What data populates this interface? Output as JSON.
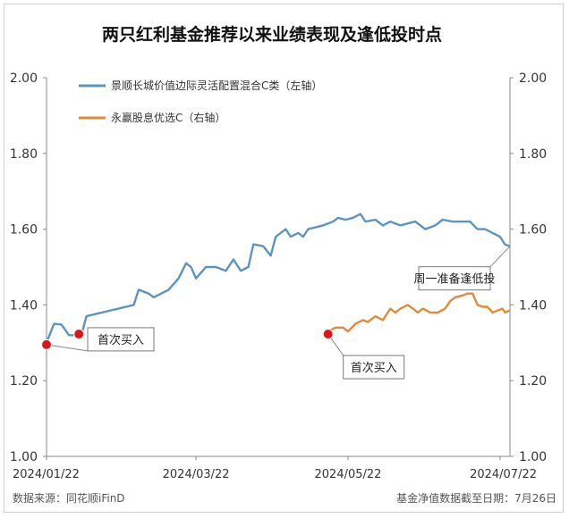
{
  "chart_data": {
    "type": "line",
    "title": "两只红利基金推荐以来业绩表现及逢低投时点",
    "x_ticks": [
      "2024/01/22",
      "2024/03/22",
      "2024/05/22",
      "2024/07/22"
    ],
    "x_tick_dates": [
      "2024-01-22",
      "2024-03-22",
      "2024-05-22",
      "2024-07-22"
    ],
    "x_range": [
      "2024-01-22",
      "2024-07-26"
    ],
    "y_left": {
      "ticks": [
        "1.00",
        "1.20",
        "1.40",
        "1.60",
        "1.80",
        "2.00"
      ],
      "range": [
        1.0,
        2.0
      ]
    },
    "y_right": {
      "ticks": [
        "1.00",
        "1.20",
        "1.40",
        "1.60",
        "1.80",
        "2.00"
      ],
      "range": [
        1.0,
        2.0
      ]
    },
    "grid": false,
    "legend_position": "top-left",
    "series": [
      {
        "name": "景顺长城价值边际灵活配置混合C类（左轴）",
        "axis": "left",
        "color": "#5b94c4",
        "points": [
          [
            "2024-01-22",
            1.3
          ],
          [
            "2024-01-25",
            1.35
          ],
          [
            "2024-01-28",
            1.348
          ],
          [
            "2024-01-31",
            1.32
          ],
          [
            "2024-02-05",
            1.32
          ],
          [
            "2024-02-07",
            1.37
          ],
          [
            "2024-02-26",
            1.4
          ],
          [
            "2024-02-28",
            1.44
          ],
          [
            "2024-03-03",
            1.43
          ],
          [
            "2024-03-05",
            1.42
          ],
          [
            "2024-03-08",
            1.43
          ],
          [
            "2024-03-11",
            1.44
          ],
          [
            "2024-03-15",
            1.47
          ],
          [
            "2024-03-18",
            1.51
          ],
          [
            "2024-03-20",
            1.5
          ],
          [
            "2024-03-22",
            1.47
          ],
          [
            "2024-03-26",
            1.5
          ],
          [
            "2024-03-30",
            1.5
          ],
          [
            "2024-04-03",
            1.49
          ],
          [
            "2024-04-06",
            1.52
          ],
          [
            "2024-04-09",
            1.49
          ],
          [
            "2024-04-12",
            1.5
          ],
          [
            "2024-04-14",
            1.56
          ],
          [
            "2024-04-18",
            1.555
          ],
          [
            "2024-04-21",
            1.53
          ],
          [
            "2024-04-23",
            1.58
          ],
          [
            "2024-04-27",
            1.6
          ],
          [
            "2024-04-29",
            1.58
          ],
          [
            "2024-05-02",
            1.59
          ],
          [
            "2024-05-04",
            1.58
          ],
          [
            "2024-05-06",
            1.6
          ],
          [
            "2024-05-12",
            1.61
          ],
          [
            "2024-05-16",
            1.62
          ],
          [
            "2024-05-18",
            1.63
          ],
          [
            "2024-05-21",
            1.625
          ],
          [
            "2024-05-24",
            1.63
          ],
          [
            "2024-05-27",
            1.64
          ],
          [
            "2024-05-29",
            1.62
          ],
          [
            "2024-06-02",
            1.625
          ],
          [
            "2024-06-05",
            1.61
          ],
          [
            "2024-06-08",
            1.62
          ],
          [
            "2024-06-12",
            1.61
          ],
          [
            "2024-06-15",
            1.615
          ],
          [
            "2024-06-18",
            1.62
          ],
          [
            "2024-06-22",
            1.6
          ],
          [
            "2024-06-26",
            1.61
          ],
          [
            "2024-06-29",
            1.625
          ],
          [
            "2024-07-03",
            1.62
          ],
          [
            "2024-07-06",
            1.62
          ],
          [
            "2024-07-10",
            1.62
          ],
          [
            "2024-07-13",
            1.6
          ],
          [
            "2024-07-16",
            1.6
          ],
          [
            "2024-07-19",
            1.59
          ],
          [
            "2024-07-22",
            1.58
          ],
          [
            "2024-07-24",
            1.56
          ],
          [
            "2024-07-26",
            1.555
          ]
        ]
      },
      {
        "name": "永赢股息优选C（右轴）",
        "axis": "right",
        "color": "#e08a3c",
        "points": [
          [
            "2024-05-14",
            1.33
          ],
          [
            "2024-05-17",
            1.34
          ],
          [
            "2024-05-20",
            1.34
          ],
          [
            "2024-05-22",
            1.33
          ],
          [
            "2024-05-25",
            1.35
          ],
          [
            "2024-05-28",
            1.36
          ],
          [
            "2024-05-30",
            1.355
          ],
          [
            "2024-06-02",
            1.37
          ],
          [
            "2024-06-05",
            1.36
          ],
          [
            "2024-06-08",
            1.39
          ],
          [
            "2024-06-10",
            1.38
          ],
          [
            "2024-06-12",
            1.39
          ],
          [
            "2024-06-15",
            1.4
          ],
          [
            "2024-06-17",
            1.39
          ],
          [
            "2024-06-19",
            1.38
          ],
          [
            "2024-06-21",
            1.39
          ],
          [
            "2024-06-24",
            1.38
          ],
          [
            "2024-06-27",
            1.38
          ],
          [
            "2024-06-30",
            1.39
          ],
          [
            "2024-07-02",
            1.41
          ],
          [
            "2024-07-04",
            1.42
          ],
          [
            "2024-07-07",
            1.425
          ],
          [
            "2024-07-09",
            1.43
          ],
          [
            "2024-07-11",
            1.43
          ],
          [
            "2024-07-13",
            1.4
          ],
          [
            "2024-07-15",
            1.395
          ],
          [
            "2024-07-17",
            1.395
          ],
          [
            "2024-07-19",
            1.38
          ],
          [
            "2024-07-21",
            1.385
          ],
          [
            "2024-07-23",
            1.39
          ],
          [
            "2024-07-24",
            1.38
          ],
          [
            "2024-07-26",
            1.385
          ]
        ]
      }
    ],
    "markers": [
      {
        "date": "2024-01-22",
        "value": 1.295,
        "axis": "left",
        "color": "#d7191c"
      },
      {
        "date": "2024-02-04",
        "value": 1.323,
        "axis": "left",
        "color": "#d7191c"
      },
      {
        "date": "2024-05-14",
        "value": 1.323,
        "axis": "left",
        "color": "#d7191c"
      }
    ],
    "annotations": [
      {
        "text": "首次买入",
        "series": "景顺长城价值边际灵活配置混合C类（左轴）",
        "date": "2024-01-22",
        "value": 1.295
      },
      {
        "text": "首次买入",
        "series": "永赢股息优选C（右轴）",
        "date": "2024-05-14",
        "value": 1.323
      },
      {
        "text": "周一准备逢低投",
        "series": "景顺长城价值边际灵活配置混合C类（左轴）",
        "date": "2024-07-26",
        "value": 1.555
      }
    ],
    "source_note": "数据来源：同花顺iFinD",
    "date_note": "基金净值数据截至日期：7月26日"
  }
}
